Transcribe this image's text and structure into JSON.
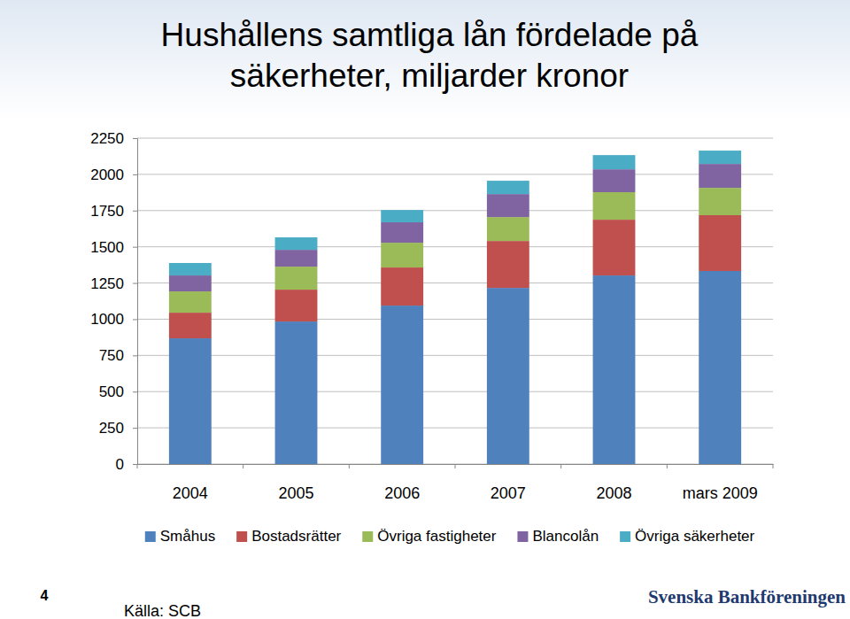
{
  "chart_data": {
    "type": "bar",
    "stacked": true,
    "title": "Hushållens samtliga lån fördelade på säkerheter, miljarder kronor",
    "categories": [
      "2004",
      "2005",
      "2006",
      "2007",
      "2008",
      "mars 2009"
    ],
    "series": [
      {
        "name": "Småhus",
        "color": "#4f81bd",
        "values": [
          868,
          984,
          1094,
          1216,
          1302,
          1333
        ]
      },
      {
        "name": "Bostadsrätter",
        "color": "#c0504d",
        "values": [
          177,
          220,
          263,
          324,
          385,
          385
        ]
      },
      {
        "name": "Övriga fastigheter",
        "color": "#9bbb59",
        "values": [
          147,
          159,
          171,
          165,
          190,
          189
        ]
      },
      {
        "name": "Blancolån",
        "color": "#8064a2",
        "values": [
          110,
          116,
          141,
          159,
          158,
          165
        ]
      },
      {
        "name": "Övriga säkerheter",
        "color": "#4bacc6",
        "values": [
          86,
          86,
          85,
          92,
          98,
          92
        ]
      }
    ],
    "ylim": [
      0,
      2250
    ],
    "yticks": [
      0,
      250,
      500,
      750,
      1000,
      1250,
      1500,
      1750,
      2000,
      2250
    ],
    "grid": true,
    "legend": "bottom",
    "annotations": [
      "4",
      "Källa: SCB",
      "Svenska Bankföreningen"
    ]
  }
}
